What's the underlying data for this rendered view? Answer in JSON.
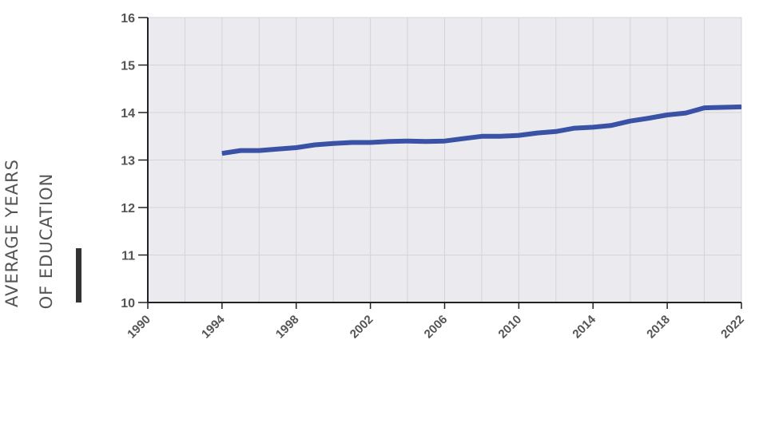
{
  "chart_data": {
    "type": "line",
    "title": "",
    "ylabel_lines": [
      "AVERAGE YEARS",
      "OF EDUCATION"
    ],
    "xlabel": "",
    "xlim": [
      1990,
      2022
    ],
    "ylim": [
      10,
      16
    ],
    "x_ticks": [
      1990,
      1994,
      1998,
      2002,
      2006,
      2010,
      2014,
      2018,
      2022
    ],
    "x_tick_labels": [
      "1990",
      "1994",
      "1998",
      "2002",
      "2006",
      "2010",
      "2014",
      "2018",
      "2022"
    ],
    "y_ticks": [
      10,
      11,
      12,
      13,
      14,
      15,
      16
    ],
    "y_tick_labels": [
      "10",
      "11",
      "12",
      "13",
      "14",
      "15",
      "16"
    ],
    "grid": true,
    "legend": "none",
    "series": [
      {
        "color": "#3a52a6",
        "x": [
          1994,
          1995,
          1996,
          1997,
          1998,
          1999,
          2000,
          2001,
          2002,
          2003,
          2004,
          2005,
          2006,
          2007,
          2008,
          2009,
          2010,
          2011,
          2012,
          2013,
          2014,
          2015,
          2016,
          2017,
          2018,
          2019,
          2020,
          2021,
          2022
        ],
        "y": [
          13.14,
          13.2,
          13.2,
          13.23,
          13.26,
          13.32,
          13.35,
          13.37,
          13.37,
          13.39,
          13.4,
          13.39,
          13.4,
          13.45,
          13.5,
          13.5,
          13.52,
          13.57,
          13.6,
          13.67,
          13.69,
          13.73,
          13.82,
          13.88,
          13.95,
          13.99,
          14.1,
          14.11,
          14.12
        ]
      }
    ],
    "plot_background": "#ebebef",
    "grid_color": "#d3d3d8",
    "axis_color": "#222222",
    "accent_bar_color": "#333333"
  }
}
